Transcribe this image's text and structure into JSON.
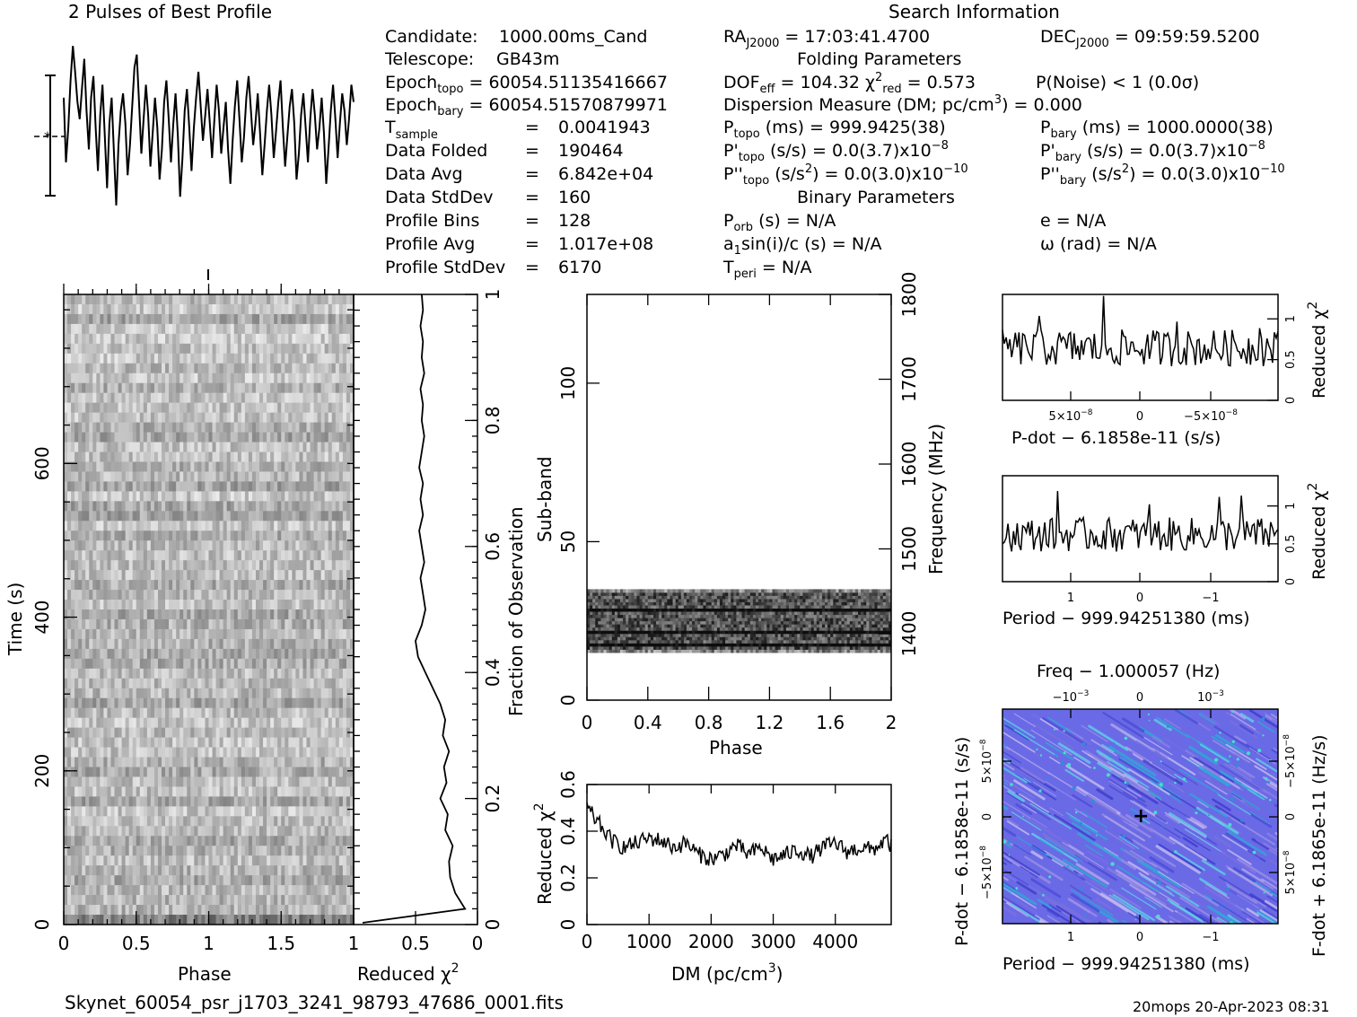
{
  "header": {
    "profile_title": "2 Pulses of Best Profile",
    "search_title": "Search Information",
    "folding_title": "Folding Parameters",
    "binary_title": "Binary Parameters"
  },
  "info": {
    "candidate_label": "Candidate:",
    "candidate_value": "1000.00ms_Cand",
    "telescope_label": "Telescope:",
    "telescope_value": "GB43m",
    "epoch_topo": "60054.51135416667",
    "epoch_bary": "60054.51570879971",
    "tsample": "0.0041943",
    "data_folded_label": "Data Folded",
    "data_folded": "190464",
    "data_avg_label": "Data Avg",
    "data_avg": "6.842e+04",
    "data_stddev_label": "Data StdDev",
    "data_stddev": "160",
    "profile_bins_label": "Profile Bins",
    "profile_bins": "128",
    "profile_avg_label": "Profile Avg",
    "profile_avg": "1.017e+08",
    "profile_stddev_label": "Profile StdDev",
    "profile_stddev": "6170"
  },
  "search": {
    "ra": "17:03:41.4700",
    "dec": "09:59:59.5200",
    "dof_eff": "104.32",
    "chi2_red": "0.573",
    "pnoise": "P(Noise) < 1   (0.0σ)",
    "dm_text": "Dispersion Measure (DM; pc/cm",
    "dm_value": ") = 0.000",
    "ptopo": "999.9425(38)",
    "pbary": "1000.0000(38)",
    "pdot_topo": "0.0(3.7)x10",
    "pdot_topo_exp": "−8",
    "pdot_bary": "0.0(3.7)x10",
    "pdot_bary_exp": "−8",
    "pddot_topo": "0.0(3.0)x10",
    "pddot_topo_exp": "−10",
    "pddot_bary": "0.0(3.0)x10",
    "pddot_bary_exp": "−10",
    "porb": "N/A",
    "a1sini": "N/A",
    "tperi": "N/A",
    "ecc": "N/A",
    "omega": "N/A"
  },
  "footer": {
    "filename": "Skynet_60054_psr_j1703_3241_98793_47686_0001.fits",
    "stamp": "20mops 20-Apr-2023 08:31"
  },
  "chart_data": [
    {
      "type": "line",
      "title": "2 Pulses of Best Profile",
      "x_range": [
        0,
        2
      ],
      "note_bins": 128,
      "profile": [
        0.9,
        -0.6,
        0.2,
        1.3,
        2.1,
        1.5,
        0.8,
        0.4,
        1.1,
        1.8,
        0.6,
        -0.3,
        0.9,
        1.4,
        0.2,
        -0.8,
        0.5,
        1.2,
        0.0,
        -1.2,
        0.3,
        0.9,
        -0.4,
        -1.6,
        -0.2,
        0.6,
        1.0,
        0.3,
        -0.9,
        -0.2,
        0.7,
        1.6,
        1.9,
        0.8,
        -0.4,
        0.4,
        1.2,
        0.5,
        -0.7,
        0.1,
        0.9,
        0.2,
        -1.0,
        -0.3,
        0.8,
        1.3,
        0.4,
        -0.6,
        0.3,
        1.0,
        0.0,
        -1.4,
        -0.5,
        0.6,
        1.1,
        0.2,
        -0.8,
        0.2,
        0.9,
        1.5,
        0.7,
        -0.1,
        0.5,
        1.1,
        0.3,
        -0.5,
        0.4,
        1.2,
        0.6,
        -0.4,
        0.2,
        0.8,
        -0.3,
        -1.1,
        -0.1,
        0.7,
        1.3,
        0.4,
        -0.6,
        0.0,
        0.9,
        1.4,
        0.6,
        -0.2,
        0.3,
        1.0,
        0.1,
        -0.9,
        -0.2,
        0.6,
        1.2,
        0.5,
        -0.5,
        0.1,
        0.8,
        1.3,
        0.2,
        -0.7,
        0.0,
        0.7,
        1.1,
        0.3,
        -1.0,
        -0.4,
        0.5,
        1.0,
        0.2,
        -0.6,
        0.4,
        1.1,
        0.5,
        -0.3,
        0.2,
        0.9,
        0.1,
        -1.1,
        -0.3,
        0.6,
        1.2,
        0.4,
        -0.5,
        0.3,
        1.0,
        0.6,
        -0.2,
        0.4,
        1.2,
        0.8
      ]
    },
    {
      "type": "heatmap",
      "name": "time-vs-phase",
      "xlabel": "Phase",
      "ylabel": "Time (s)",
      "x_range": [
        0,
        2
      ],
      "y_range": [
        0,
        820
      ],
      "x_ticks": [
        "0",
        "0.5",
        "1",
        "1.5"
      ],
      "y_ticks": [
        "0",
        "200",
        "400",
        "600"
      ],
      "rows": 64
    },
    {
      "type": "line",
      "name": "reduced-chi2-vs-time",
      "xlabel": "Reduced χ",
      "ylabel": "Fraction of Observation",
      "x_range": [
        1,
        0
      ],
      "y_range": [
        0,
        1
      ],
      "x_ticks": [
        "1",
        "0.5",
        "0"
      ],
      "y_ticks": [
        "0",
        "0.2",
        "0.4",
        "0.6",
        "0.8",
        "1"
      ],
      "fraction": [
        0.0,
        0.025,
        0.05,
        0.075,
        0.1,
        0.125,
        0.15,
        0.175,
        0.2,
        0.225,
        0.25,
        0.275,
        0.3,
        0.325,
        0.35,
        0.375,
        0.4,
        0.425,
        0.45,
        0.475,
        0.5,
        0.525,
        0.55,
        0.575,
        0.6,
        0.625,
        0.65,
        0.675,
        0.7,
        0.725,
        0.75,
        0.775,
        0.8,
        0.825,
        0.85,
        0.875,
        0.9,
        0.925,
        0.95,
        0.975,
        1.0
      ],
      "chi2": [
        0.97,
        0.1,
        0.18,
        0.22,
        0.23,
        0.2,
        0.26,
        0.24,
        0.3,
        0.25,
        0.27,
        0.23,
        0.28,
        0.26,
        0.3,
        0.36,
        0.42,
        0.48,
        0.5,
        0.45,
        0.42,
        0.44,
        0.46,
        0.43,
        0.45,
        0.47,
        0.44,
        0.46,
        0.44,
        0.47,
        0.45,
        0.43,
        0.45,
        0.44,
        0.46,
        0.43,
        0.45,
        0.44,
        0.46,
        0.44,
        0.45
      ]
    },
    {
      "type": "heatmap",
      "name": "subband-vs-phase",
      "xlabel": "Phase",
      "ylabel": "Sub-band",
      "y2label": "Frequency (MHz)",
      "x_range": [
        0,
        2
      ],
      "y_range": [
        0,
        128
      ],
      "x_ticks": [
        "0",
        "0.4",
        "0.8",
        "1.2",
        "1.6",
        "2"
      ],
      "y_ticks": [
        "0",
        "50",
        "100"
      ],
      "y2_ticks": [
        "1400",
        "1500",
        "1600",
        "1700",
        "1800"
      ],
      "active_subbands": [
        15,
        35
      ]
    },
    {
      "type": "line",
      "name": "chi2-vs-dm",
      "xlabel": "DM (pc/cm",
      "ylabel": "Reduced χ",
      "x_range": [
        0,
        4900
      ],
      "y_range": [
        0,
        0.6
      ],
      "x_ticks": [
        "0",
        "1000",
        "2000",
        "3000",
        "4000"
      ],
      "y_ticks": [
        "0",
        "0.2",
        "0.4",
        "0.6"
      ],
      "x": [
        0,
        200,
        400,
        600,
        800,
        1000,
        1200,
        1400,
        1600,
        1800,
        2000,
        2200,
        2400,
        2600,
        2800,
        3000,
        3200,
        3400,
        3600,
        3800,
        4000,
        4200,
        4400,
        4600,
        4800,
        4900
      ],
      "y": [
        0.5,
        0.43,
        0.36,
        0.33,
        0.35,
        0.37,
        0.36,
        0.33,
        0.35,
        0.3,
        0.28,
        0.3,
        0.34,
        0.3,
        0.33,
        0.28,
        0.3,
        0.32,
        0.29,
        0.33,
        0.35,
        0.31,
        0.33,
        0.32,
        0.36,
        0.34
      ]
    },
    {
      "type": "line",
      "name": "chi2-vs-pdot",
      "xlabel": "P-dot − 6.1858e-11 (s/s)",
      "ylabel": "Reduced χ",
      "y_range": [
        0,
        1.3
      ],
      "x_ticks": [
        "5×10",
        "0",
        "−5×10"
      ],
      "x_ticks_exp": "−8",
      "y_ticks": [
        "0",
        "0.5",
        "1"
      ]
    },
    {
      "type": "line",
      "name": "chi2-vs-period",
      "xlabel": "Period − 999.94251380 (ms)",
      "ylabel": "Reduced χ",
      "y_range": [
        0,
        1.4
      ],
      "x_ticks": [
        "1",
        "0",
        "−1"
      ],
      "y_ticks": [
        "0",
        "0.5",
        "1"
      ]
    },
    {
      "type": "heatmap",
      "name": "pdot-vs-period",
      "xlabel": "Period − 999.94251380 (ms)",
      "ylabel": "P-dot − 6.1858e-11 (s/s)",
      "x2label": "Freq − 1.000057 (Hz)",
      "y2label": "F-dot + 6.1865e-11 (Hz/s)",
      "x_ticks": [
        "1",
        "0",
        "−1"
      ],
      "x2_ticks": [
        "−10",
        "0",
        "10"
      ],
      "x2_ticks_exp": "−3",
      "y_ticks": [
        "5×10",
        "0",
        "−5×10"
      ],
      "y_ticks_exp": "−8"
    }
  ]
}
